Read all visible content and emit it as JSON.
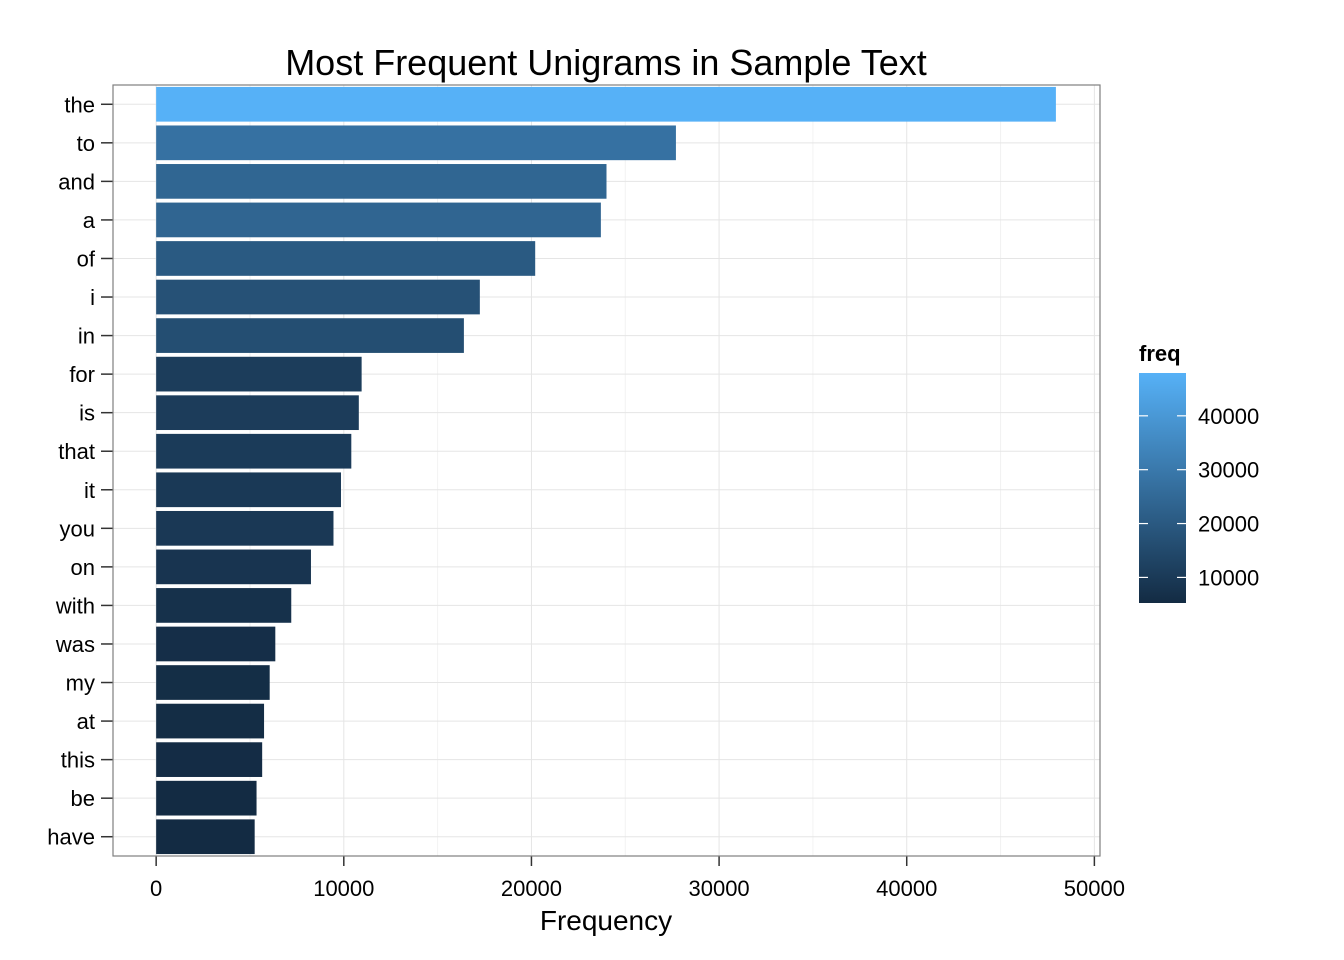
{
  "chart_data": {
    "type": "bar",
    "orientation": "horizontal",
    "title": "Most Frequent Unigrams in Sample Text",
    "xlabel": "Frequency",
    "ylabel": "",
    "categories": [
      "the",
      "to",
      "and",
      "a",
      "of",
      "i",
      "in",
      "for",
      "is",
      "that",
      "it",
      "you",
      "on",
      "with",
      "was",
      "my",
      "at",
      "this",
      "be",
      "have"
    ],
    "values": [
      47950,
      27700,
      24000,
      23700,
      20200,
      17250,
      16400,
      10950,
      10800,
      10400,
      9850,
      9450,
      8250,
      7200,
      6350,
      6050,
      5750,
      5650,
      5350,
      5250
    ],
    "xlim": [
      -2300,
      50300
    ],
    "xticks": [
      0,
      10000,
      20000,
      30000,
      40000,
      50000
    ],
    "grid": true,
    "legend": {
      "title": "freq",
      "position": "right",
      "ticks": [
        10000,
        20000,
        30000,
        40000
      ],
      "range": [
        5250,
        47950
      ],
      "low_color": "#132B43",
      "high_color": "#56B1F7"
    }
  }
}
